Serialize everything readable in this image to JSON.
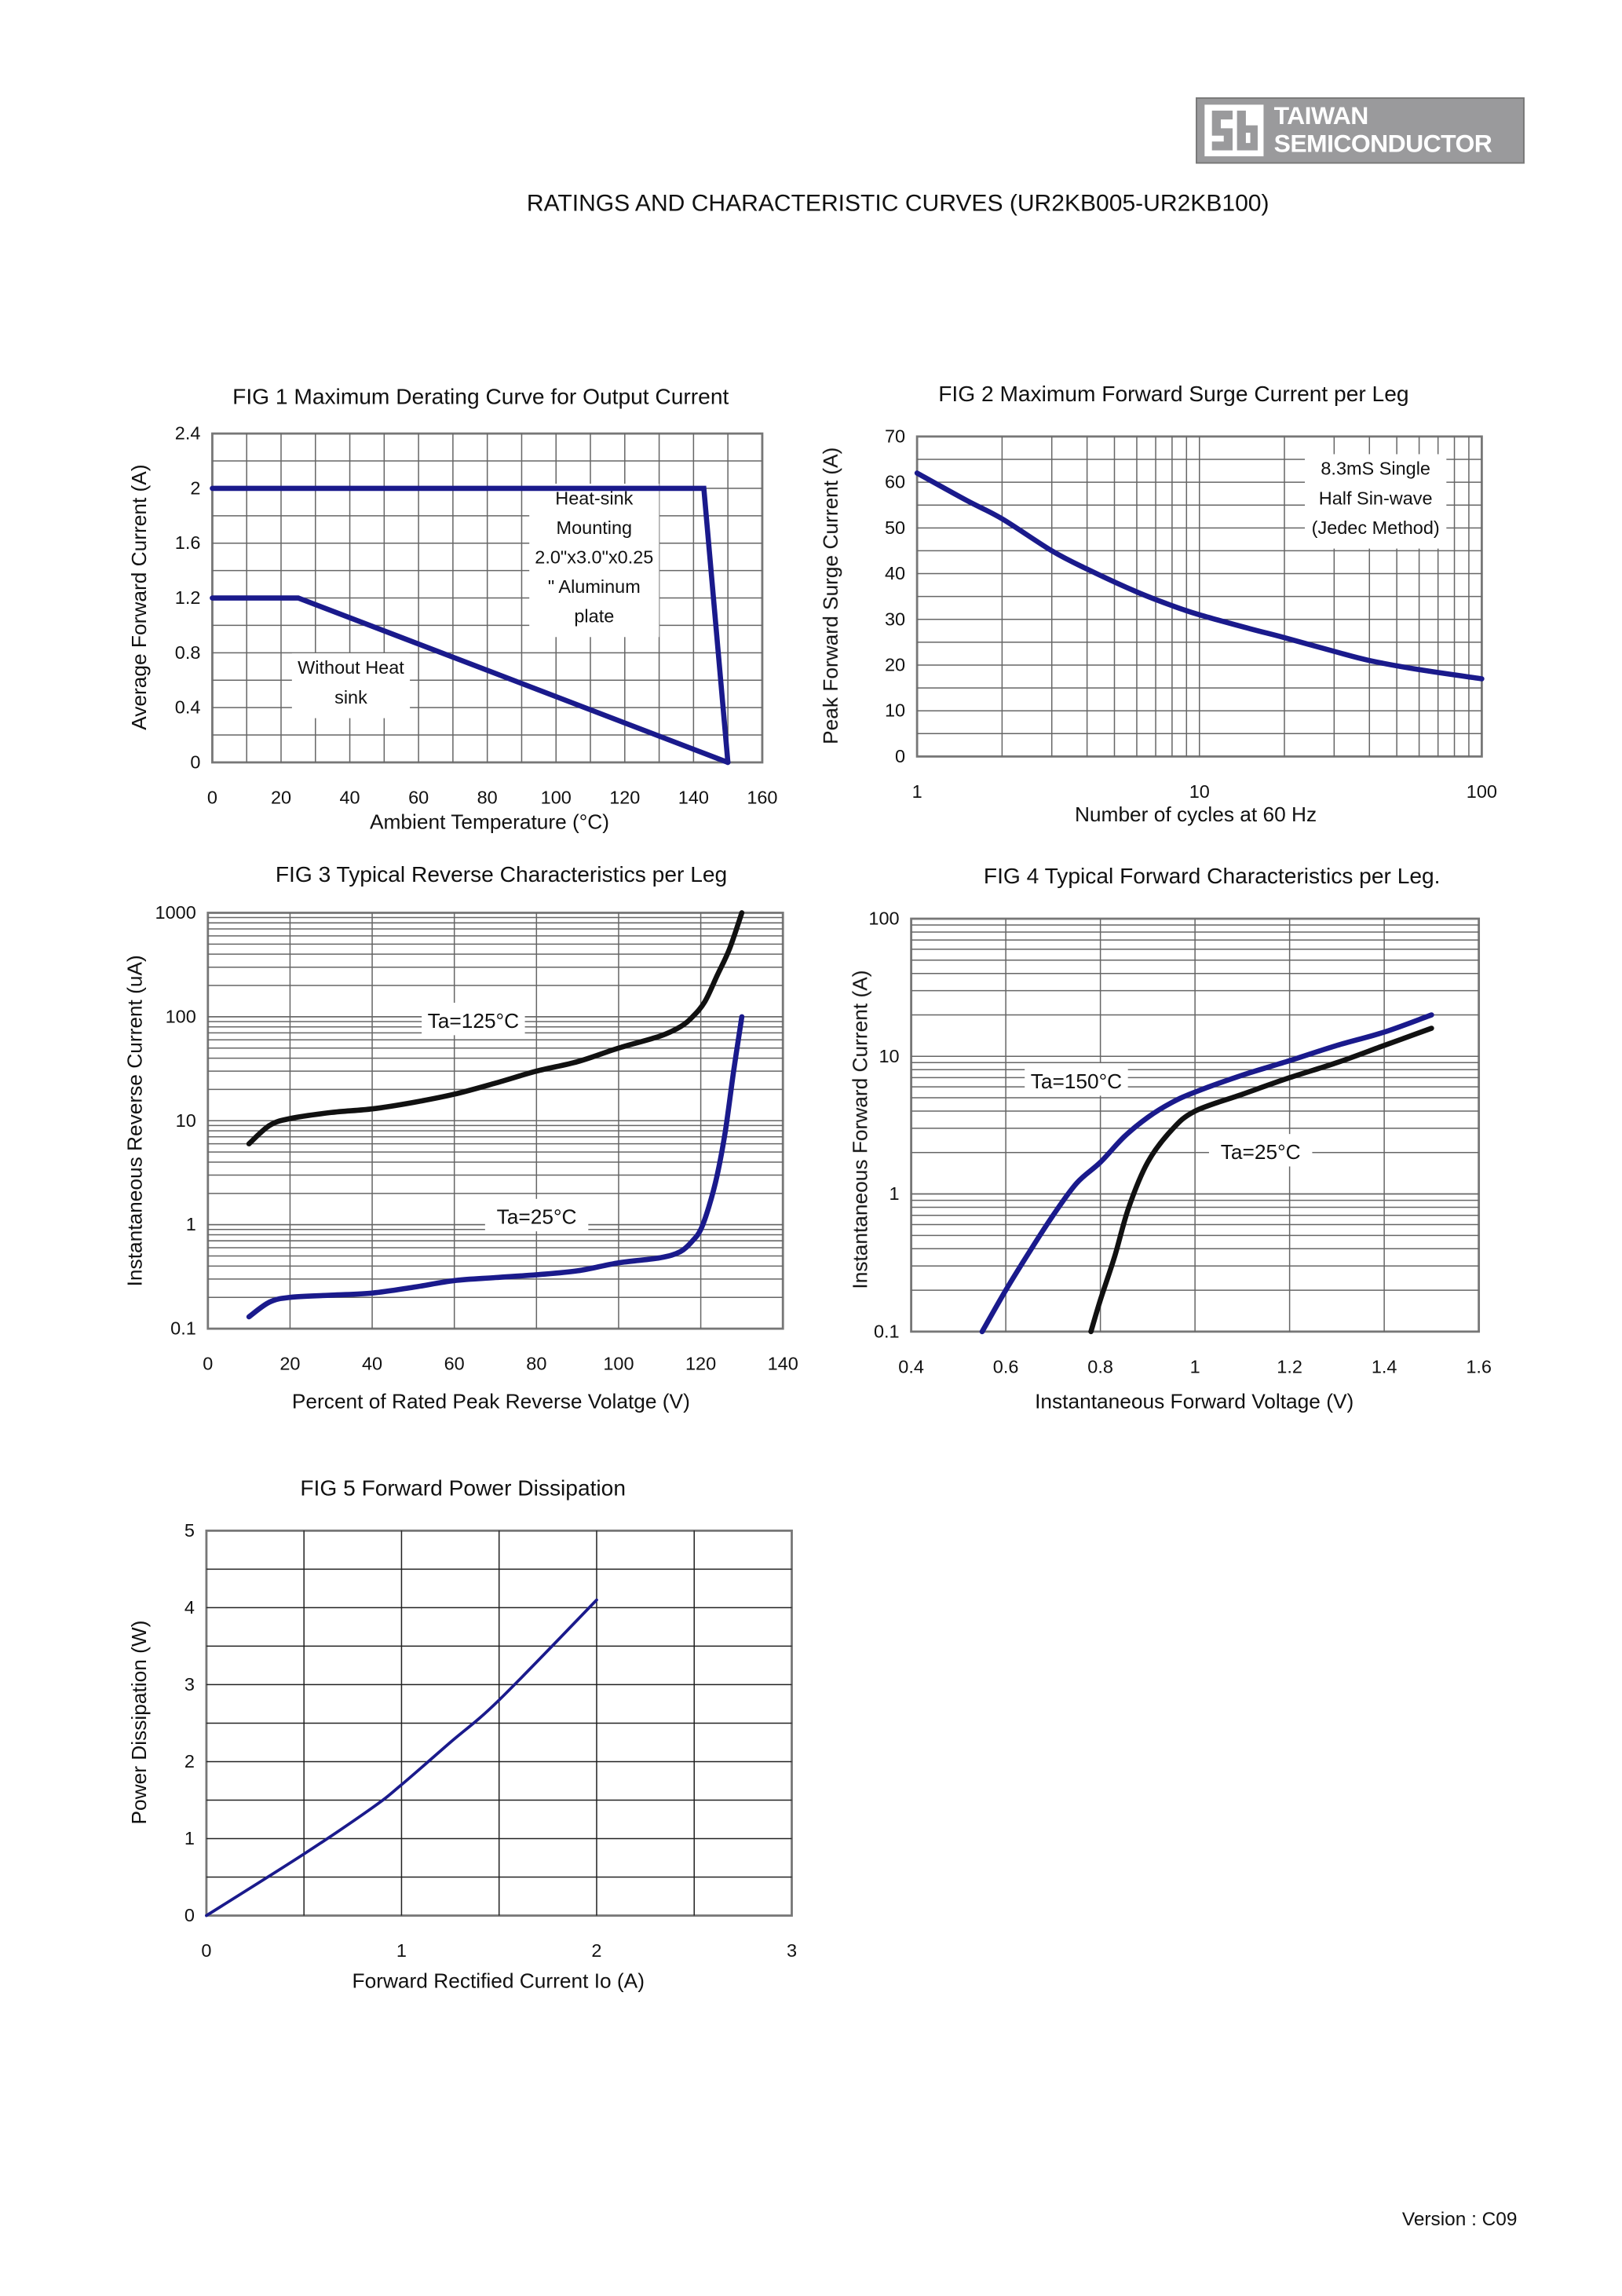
{
  "logo": {
    "line1": "TAIWAN",
    "line2": "SEMICONDUCTOR"
  },
  "page_title": "RATINGS AND CHARACTERISTIC CURVES (UR2KB005-UR2KB100)",
  "version": "Version : C09",
  "colors": {
    "blue": "#1a1a8c",
    "black": "#111111",
    "grid": "#555555"
  },
  "chart_data": [
    {
      "id": "fig1",
      "type": "line",
      "title": "FIG 1 Maximum Derating Curve for Output Current",
      "xlabel": "Ambient Temperature (°C)",
      "ylabel": "Average Forward Current (A)",
      "xlim": [
        0,
        160
      ],
      "ylim": [
        0,
        2.4
      ],
      "xticks": [
        "0",
        "20",
        "40",
        "60",
        "80",
        "100",
        "120",
        "140",
        "160"
      ],
      "yticks": [
        "0",
        "0.4",
        "0.8",
        "1.2",
        "1.6",
        "2",
        "2.4"
      ],
      "grid": true,
      "annotations": [
        [
          "Heat-sink",
          "Mounting",
          "2.0\"x3.0\"x0.25",
          "\" Aluminum",
          "plate"
        ],
        [
          "Without Heat",
          "sink"
        ]
      ],
      "series": [
        {
          "name": "Heat-sink Mounting",
          "color": "#1a1a8c",
          "x": [
            0,
            143,
            150
          ],
          "y": [
            2,
            2,
            0
          ]
        },
        {
          "name": "Without Heat sink",
          "color": "#1a1a8c",
          "x": [
            0,
            25,
            150
          ],
          "y": [
            1.2,
            1.2,
            0
          ]
        }
      ]
    },
    {
      "id": "fig2",
      "type": "line",
      "title": "FIG 2 Maximum  Forward Surge Current per Leg",
      "xlabel": "Number of cycles at 60 Hz",
      "ylabel": "Peak Forward Surge Current (A)",
      "xscale": "log",
      "xlim": [
        1,
        100
      ],
      "ylim": [
        0,
        70
      ],
      "xticks": [
        "1",
        "10",
        "100"
      ],
      "yticks": [
        "0",
        "10",
        "20",
        "30",
        "40",
        "50",
        "60",
        "70"
      ],
      "grid": true,
      "annotations": [
        [
          "8.3mS Single",
          "Half Sin-wave",
          "(Jedec Method)"
        ]
      ],
      "series": [
        {
          "color": "#1a1a8c",
          "x": [
            1,
            1.5,
            2,
            3,
            4,
            6,
            8,
            10,
            15,
            20,
            30,
            40,
            60,
            100
          ],
          "y": [
            62,
            56,
            52,
            45,
            41,
            36,
            33,
            31,
            28,
            26,
            23,
            21,
            19,
            17
          ]
        }
      ]
    },
    {
      "id": "fig3",
      "type": "line",
      "title": "FIG 3 Typical Reverse Characteristics per Leg",
      "xlabel": "Percent of Rated Peak Reverse Volatge (V)",
      "ylabel": "Instantaneous Reverse Current (uA)",
      "yscale": "log",
      "xlim": [
        0,
        140
      ],
      "ylim": [
        0.1,
        1000
      ],
      "xticks": [
        "0",
        "20",
        "40",
        "60",
        "80",
        "100",
        "120",
        "140"
      ],
      "yticks": [
        "0.1",
        "1",
        "10",
        "100",
        "1000"
      ],
      "grid": true,
      "series": [
        {
          "name": "Ta=125°C",
          "color": "#111111",
          "x": [
            10,
            15,
            20,
            30,
            40,
            50,
            60,
            70,
            80,
            90,
            100,
            110,
            115,
            118,
            121,
            124,
            127,
            130
          ],
          "y": [
            6,
            9,
            10.5,
            12,
            13,
            15,
            18,
            23,
            30,
            37,
            50,
            65,
            80,
            100,
            140,
            250,
            450,
            1000
          ]
        },
        {
          "name": "Ta=25°C",
          "color": "#1a1a8c",
          "x": [
            10,
            15,
            20,
            30,
            40,
            50,
            60,
            70,
            80,
            90,
            100,
            110,
            115,
            118,
            120,
            122,
            124,
            126,
            128,
            130
          ],
          "y": [
            0.13,
            0.18,
            0.2,
            0.21,
            0.22,
            0.25,
            0.29,
            0.31,
            0.33,
            0.36,
            0.43,
            0.48,
            0.55,
            0.7,
            0.9,
            1.5,
            3,
            8,
            30,
            100
          ]
        }
      ]
    },
    {
      "id": "fig4",
      "type": "line",
      "title": "FIG 4 Typical Forward Characteristics per Leg.",
      "xlabel": "Instantaneous Forward Voltage (V)",
      "ylabel": "Instantaneous Forward Current (A)",
      "yscale": "log",
      "xlim": [
        0.4,
        1.6
      ],
      "ylim": [
        0.1,
        100
      ],
      "xticks": [
        "0.4",
        "0.6",
        "0.8",
        "1",
        "1.2",
        "1.4",
        "1.6"
      ],
      "yticks": [
        "0.1",
        "1",
        "10",
        "100"
      ],
      "grid": true,
      "series": [
        {
          "name": "Ta=150°C",
          "color": "#1a1a8c",
          "x": [
            0.55,
            0.6,
            0.65,
            0.7,
            0.75,
            0.8,
            0.85,
            0.9,
            0.95,
            1.0,
            1.1,
            1.2,
            1.3,
            1.4,
            1.5
          ],
          "y": [
            0.1,
            0.2,
            0.38,
            0.7,
            1.2,
            1.7,
            2.6,
            3.6,
            4.6,
            5.5,
            7.3,
            9.3,
            12,
            15,
            20
          ]
        },
        {
          "name": "Ta=25°C",
          "color": "#111111",
          "x": [
            0.78,
            0.8,
            0.83,
            0.86,
            0.9,
            0.95,
            1.0,
            1.1,
            1.2,
            1.3,
            1.4,
            1.5
          ],
          "y": [
            0.1,
            0.17,
            0.35,
            0.8,
            1.7,
            2.9,
            4,
            5.3,
            7,
            9,
            12,
            16
          ]
        }
      ]
    },
    {
      "id": "fig5",
      "type": "line",
      "title": "FIG 5 Forward Power Dissipation",
      "xlabel": "Forward Rectified Current Io (A)",
      "ylabel": "Power Dissipation (W)",
      "xlim": [
        0,
        3
      ],
      "ylim": [
        0,
        5
      ],
      "xticks": [
        "0",
        "1",
        "2",
        "3"
      ],
      "yticks": [
        "0",
        "1",
        "2",
        "3",
        "4",
        "5"
      ],
      "grid": true,
      "series": [
        {
          "color": "#1a1a8c",
          "x": [
            0,
            0.5,
            0.85,
            1,
            1.25,
            1.5,
            2
          ],
          "y": [
            0,
            0.8,
            1.4,
            1.7,
            2.25,
            2.8,
            4.1
          ]
        }
      ]
    }
  ]
}
